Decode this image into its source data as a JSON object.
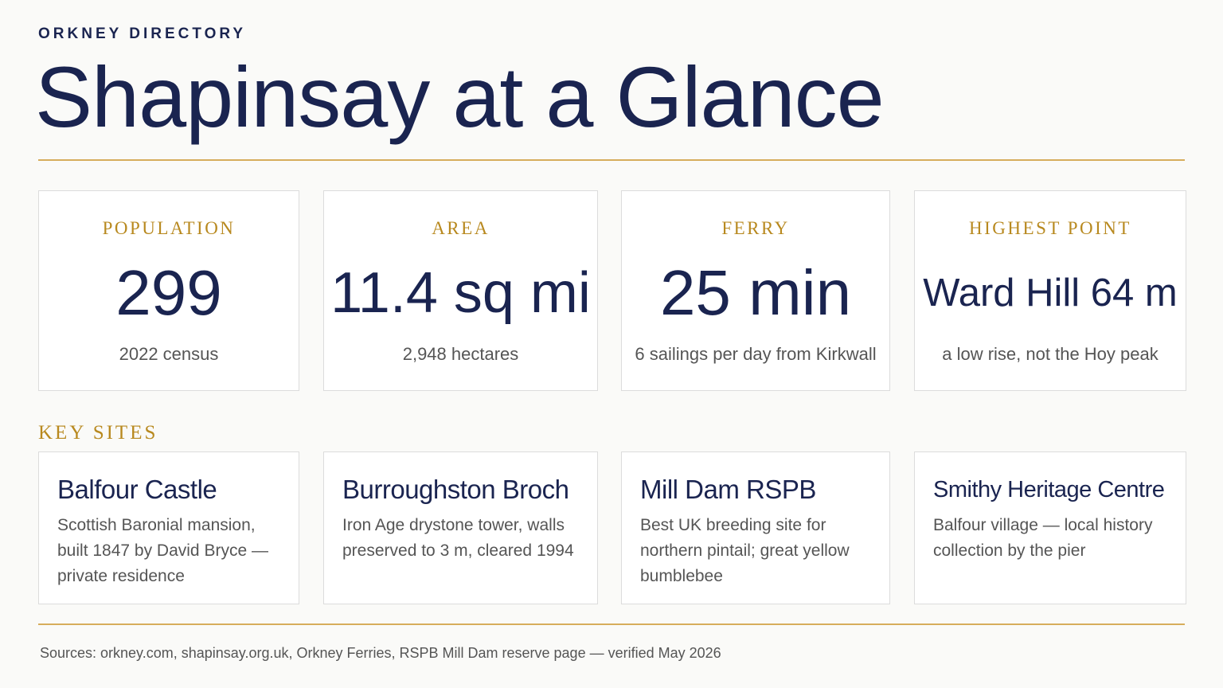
{
  "header": {
    "eyebrow": "ORKNEY DIRECTORY",
    "title": "Shapinsay at a Glance"
  },
  "stats": [
    {
      "label": "POPULATION",
      "value": "299",
      "note": "2022 census"
    },
    {
      "label": "AREA",
      "value": "11.4 sq mi",
      "note": "2,948 hectares"
    },
    {
      "label": "FERRY",
      "value": "25 min",
      "note": "6 sailings per day from Kirkwall"
    },
    {
      "label": "HIGHEST POINT",
      "value": "Ward Hill 64 m",
      "note": "a low rise, not the Hoy peak"
    }
  ],
  "key_sites": {
    "heading": "KEY SITES",
    "sites": [
      {
        "name": "Balfour Castle",
        "description": "Scottish Baronial mansion, built 1847 by David Bryce — private residence"
      },
      {
        "name": "Burroughston Broch",
        "description": "Iron Age drystone tower, walls preserved to 3 m, cleared 1994"
      },
      {
        "name": "Mill Dam RSPB",
        "description": "Best UK breeding site for northern pintail; great yellow bumblebee"
      },
      {
        "name": "Smithy Heritage Centre",
        "description": "Balfour village — local history collection by the pier"
      }
    ]
  },
  "footer": {
    "sources": "Sources: orkney.com, shapinsay.org.uk, Orkney Ferries, RSPB Mill Dam reserve page — verified May 2026"
  }
}
